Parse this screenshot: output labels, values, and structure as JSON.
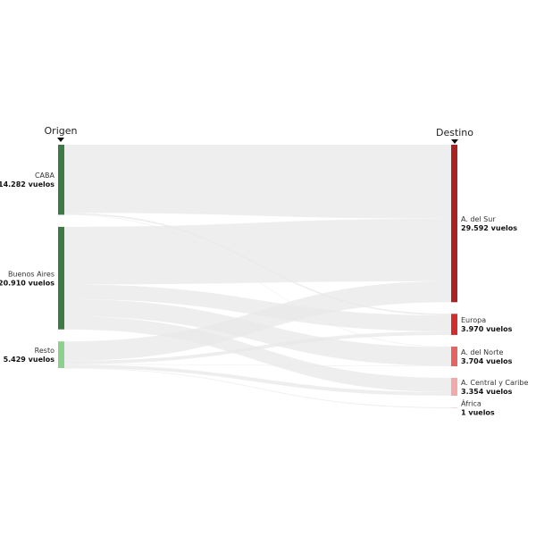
{
  "headers": {
    "origin": "Origen",
    "destination": "Destino"
  },
  "chart_data": {
    "type": "sankey",
    "sources": [
      {
        "name": "CABA",
        "value_label": "14.282 vuelos",
        "value": 14282,
        "color": "#3e7a45"
      },
      {
        "name": "Buenos Aires",
        "value_label": "20.910 vuelos",
        "value": 20910,
        "color": "#3e7a45"
      },
      {
        "name": "Resto",
        "value_label": "5.429 vuelos",
        "value": 5429,
        "color": "#8ccf8f"
      }
    ],
    "targets": [
      {
        "name": "A. del Sur",
        "value_label": "29.592 vuelos",
        "value": 29592,
        "color": "#a82424"
      },
      {
        "name": "Europa",
        "value_label": "3.970 vuelos",
        "value": 3970,
        "color": "#d02e2e"
      },
      {
        "name": "A. del Norte",
        "value_label": "3.704 vuelos",
        "value": 3704,
        "color": "#e26565"
      },
      {
        "name": "A. Central y Caribe",
        "value_label": "3.354 vuelos",
        "value": 3354,
        "color": "#f1a9a9"
      },
      {
        "name": "África",
        "value_label": "1 vuelos",
        "value": 1,
        "color": "#f7d6d6"
      }
    ],
    "links": [
      {
        "source": "CABA",
        "target": "A. del Sur",
        "value": 13880
      },
      {
        "source": "CABA",
        "target": "Europa",
        "value": 300
      },
      {
        "source": "CABA",
        "target": "A. del Norte",
        "value": 102
      },
      {
        "source": "Buenos Aires",
        "target": "A. del Sur",
        "value": 11750
      },
      {
        "source": "Buenos Aires",
        "target": "Europa",
        "value": 3000
      },
      {
        "source": "Buenos Aires",
        "target": "A. del Norte",
        "value": 3500
      },
      {
        "source": "Buenos Aires",
        "target": "A. Central y Caribe",
        "value": 2660
      },
      {
        "source": "Resto",
        "target": "A. del Sur",
        "value": 3962
      },
      {
        "source": "Resto",
        "target": "Europa",
        "value": 670
      },
      {
        "source": "Resto",
        "target": "A. del Norte",
        "value": 102
      },
      {
        "source": "Resto",
        "target": "A. Central y Caribe",
        "value": 694
      },
      {
        "source": "Resto",
        "target": "África",
        "value": 1
      }
    ],
    "colors": {
      "link": "#e8e8e8"
    }
  }
}
